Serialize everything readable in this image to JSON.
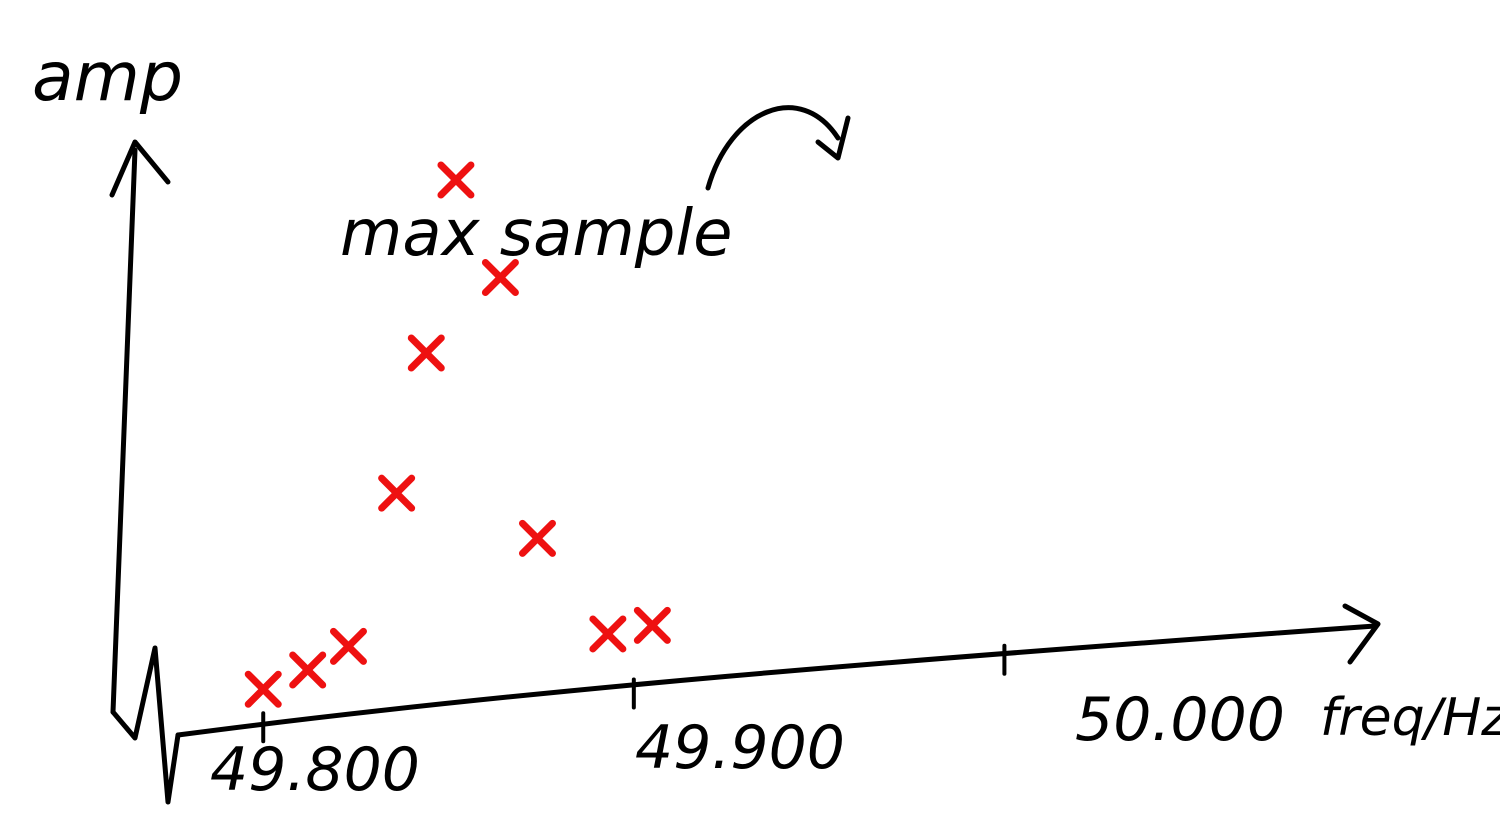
{
  "chart_data": {
    "type": "scatter",
    "title": "",
    "xlabel": "freq/Hz",
    "ylabel": "amp",
    "x_ticks": [
      {
        "value": 49.8,
        "label": "49.800"
      },
      {
        "value": 49.9,
        "label": "49.900"
      },
      {
        "value": 50.0,
        "label": "50.000"
      }
    ],
    "xlim": [
      49.777,
      50.1
    ],
    "ylim": [
      0,
      1
    ],
    "grid": false,
    "marker_color": "#ee1111",
    "axis_color": "#000000",
    "series": [
      {
        "marker": "x",
        "x": [
          49.8,
          49.812,
          49.823,
          49.836,
          49.844,
          49.852,
          49.864,
          49.874,
          49.893,
          49.905
        ],
        "y": [
          0.0,
          0.03,
          0.07,
          0.37,
          0.65,
          1.0,
          0.8,
          0.26,
          0.05,
          0.06
        ]
      }
    ],
    "annotations": [
      {
        "text": "max sample",
        "target_index": 5
      }
    ]
  }
}
